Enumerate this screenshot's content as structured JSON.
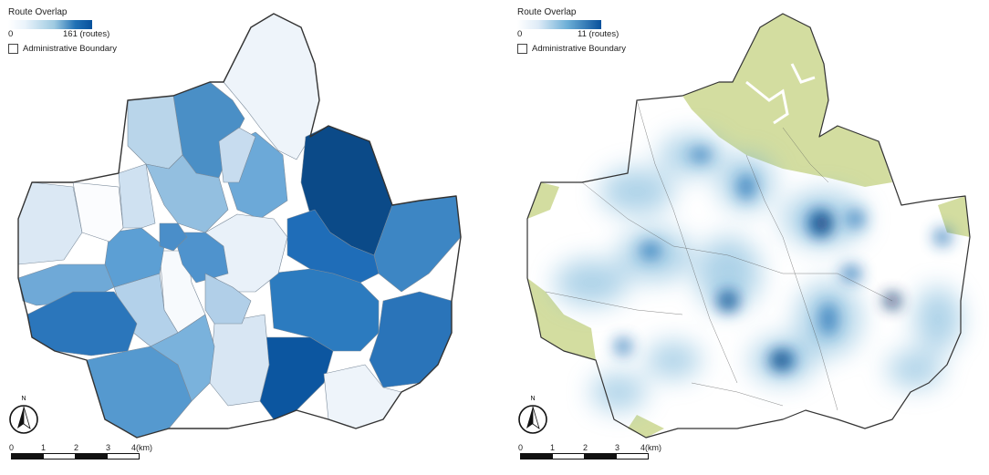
{
  "panels": [
    {
      "legend": {
        "title": "Route Overlap",
        "min": "0",
        "max": "161",
        "unit": "(routes)",
        "boundary_label": "Administrative Boundary"
      },
      "north_label": "N",
      "scale": {
        "ticks": [
          "0",
          "1",
          "2",
          "3",
          "4(km)"
        ]
      },
      "colors": {
        "ramp_low": "#ffffff",
        "ramp_high": "#08519c"
      }
    },
    {
      "legend": {
        "title": "Route Overlap",
        "min": "0",
        "max": "11",
        "unit": "(routes)",
        "boundary_label": "Administrative Boundary"
      },
      "north_label": "N",
      "scale": {
        "ticks": [
          "0",
          "1",
          "2",
          "3",
          "4(km)"
        ]
      },
      "colors": {
        "ramp_low": "#ffffff",
        "ramp_high": "#08519c",
        "green_area": "#d3dda0"
      }
    }
  ]
}
